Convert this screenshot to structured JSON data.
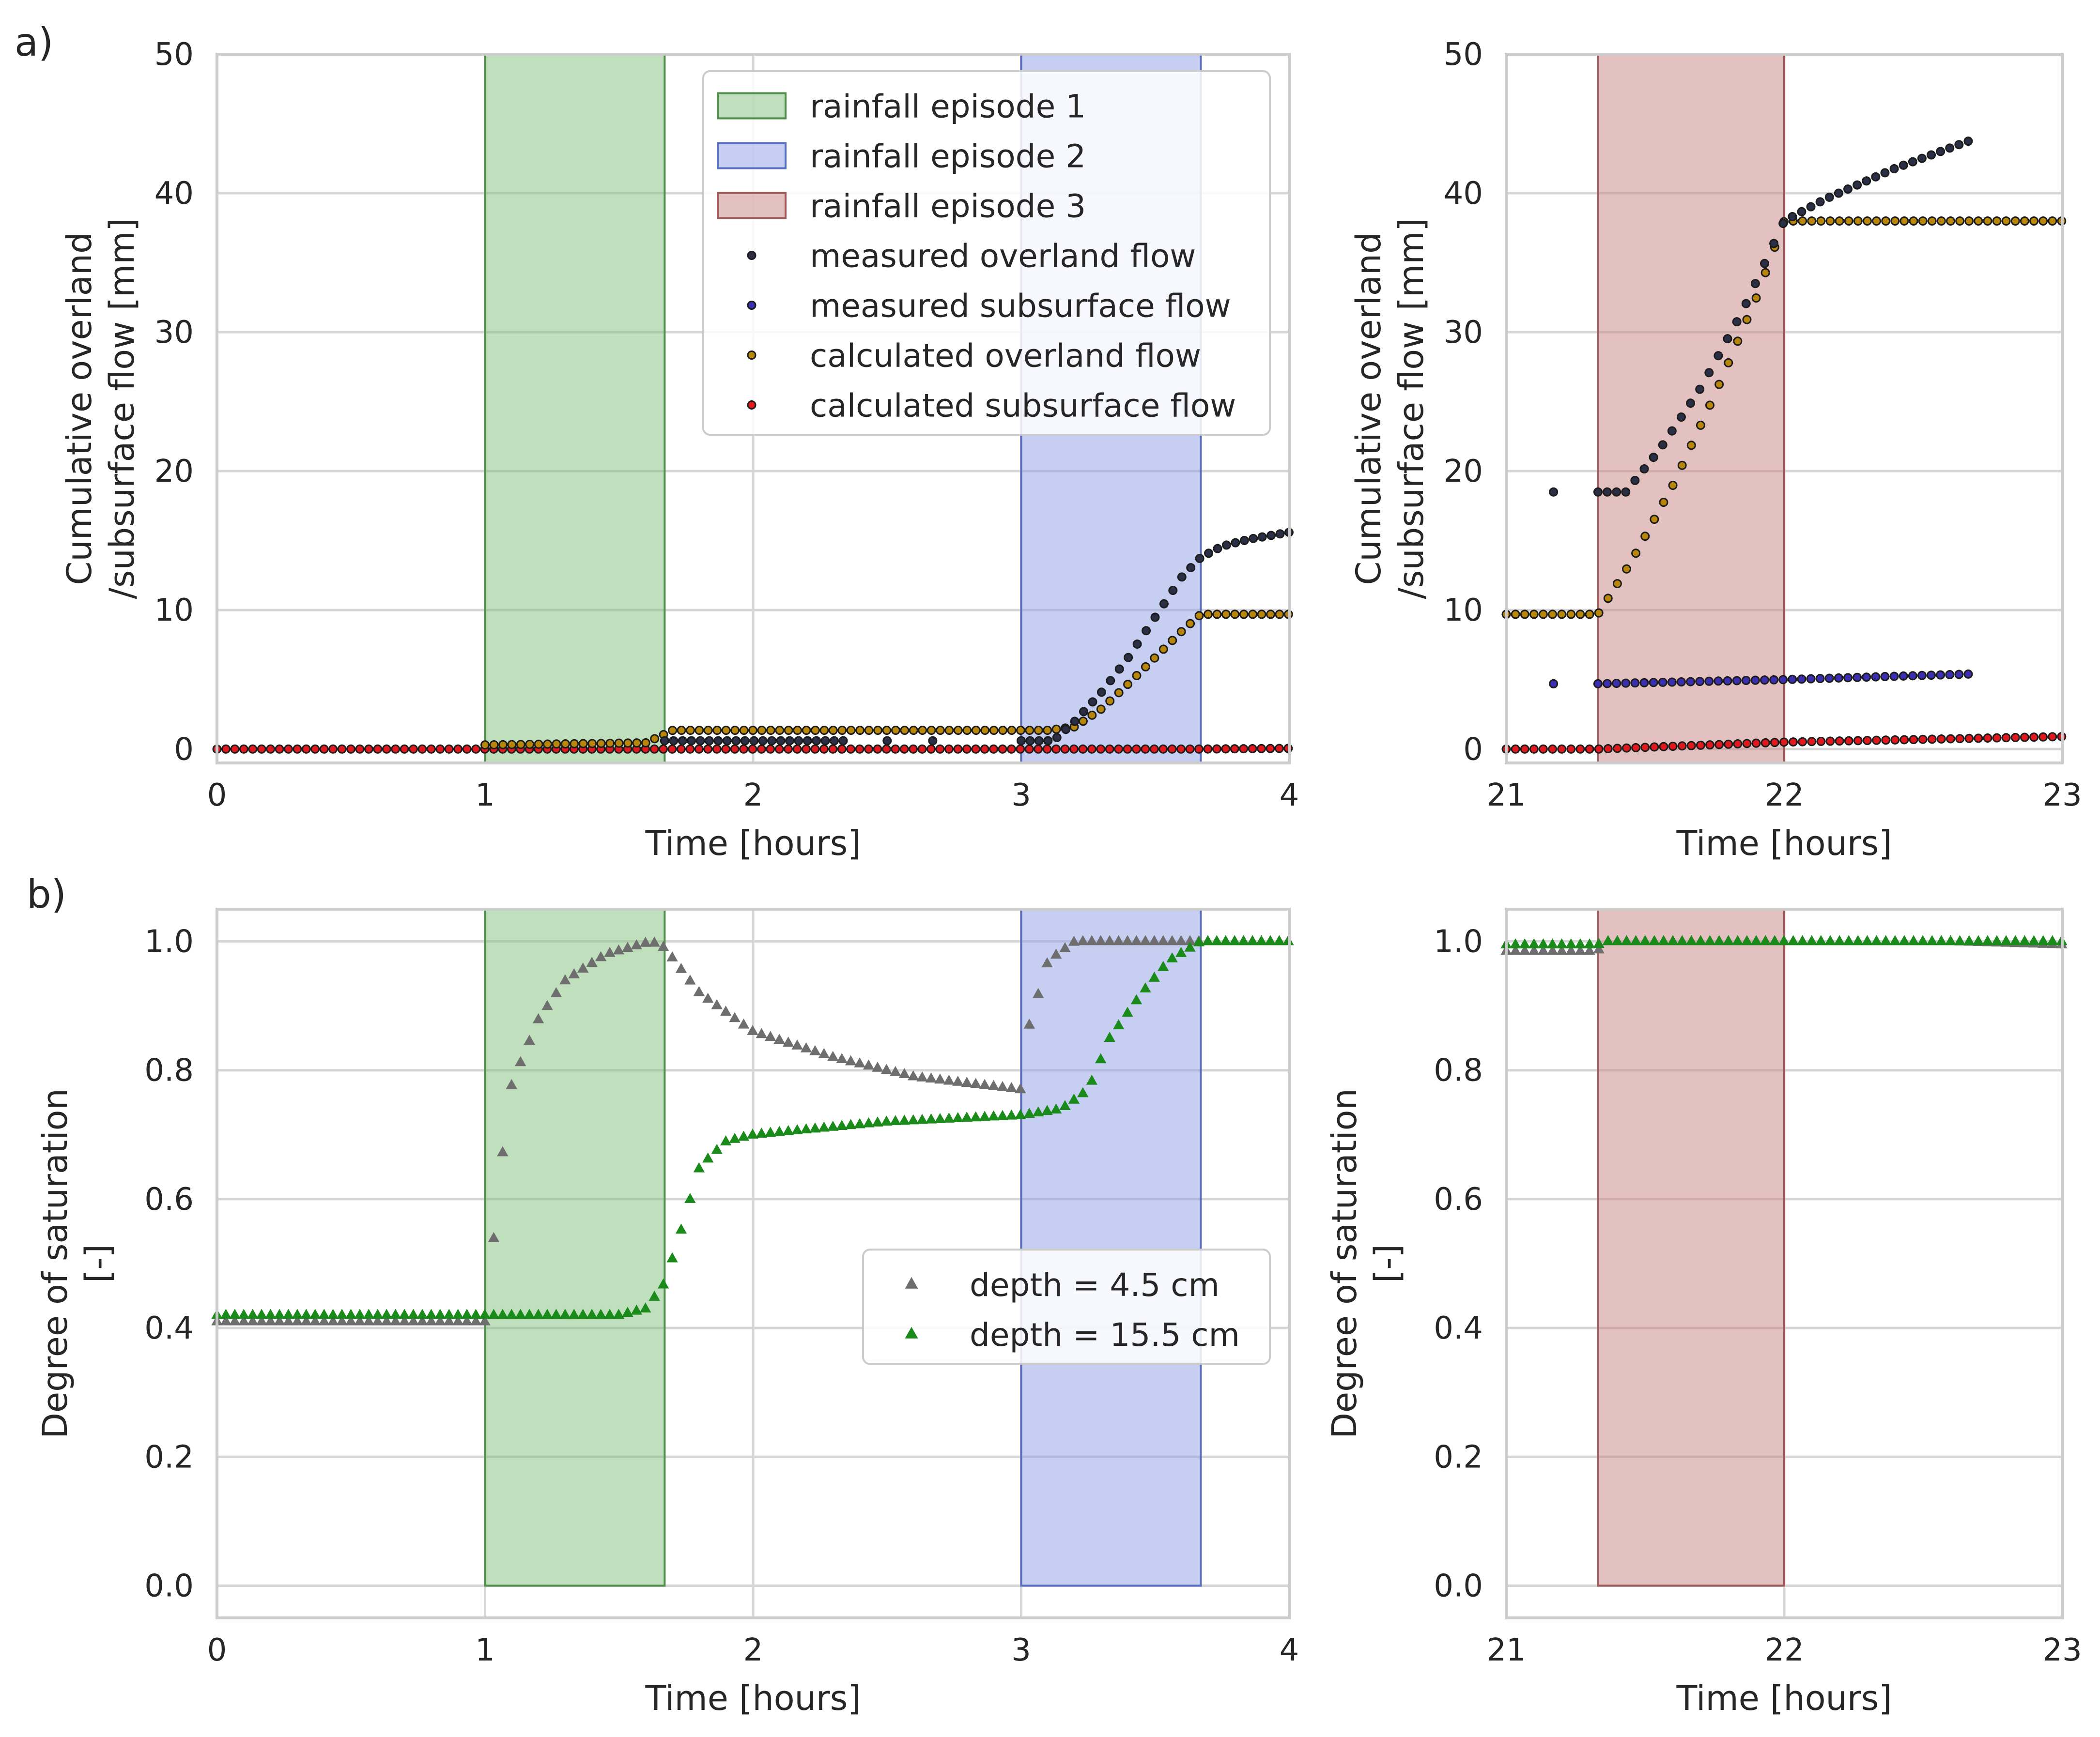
{
  "colors": {
    "ep1": "#7fbf7b",
    "ep1_edge": "#4f8f4b",
    "ep2": "#8da0e6",
    "ep2_edge": "#5a6fbf",
    "ep3": "#c98383",
    "ep3_edge": "#9e5a5a",
    "measured_overland": "#2a2f45",
    "measured_subsurface": "#3b2fb0",
    "calculated_overland": "#b8860b",
    "calculated_subsurface": "#e0191f",
    "depth_4_5": "#6e6e6e",
    "depth_15_5": "#1a8a1a",
    "grid": "#d6d6d6",
    "spine": "#cccccc"
  },
  "labels": {
    "panel_a": "a)",
    "panel_b": "b)"
  },
  "chart_data": [
    {
      "id": "a-left",
      "type": "scatter",
      "xlabel": "Time [hours]",
      "ylabel_lines": [
        "Cumulative overland",
        "/subsurface flow [mm]"
      ],
      "xlim": [
        0,
        4
      ],
      "ylim": [
        -1,
        50
      ],
      "xticks": [
        "0",
        "1",
        "2",
        "3",
        "4"
      ],
      "yticks": [
        "0",
        "10",
        "20",
        "30",
        "40",
        "50"
      ],
      "spans": [
        {
          "name": "rainfall episode 1",
          "x": [
            1.0,
            1.67
          ],
          "color": "ep1"
        },
        {
          "name": "rainfall episode 2",
          "x": [
            3.0,
            3.67
          ],
          "color": "ep2"
        }
      ],
      "legend": {
        "location": "upper right",
        "entries": [
          {
            "label": "rainfall episode 1",
            "kind": "patch",
            "color": "ep1"
          },
          {
            "label": "rainfall episode 2",
            "kind": "patch",
            "color": "ep2"
          },
          {
            "label": "rainfall episode 3",
            "kind": "patch",
            "color": "ep3"
          },
          {
            "label": "measured overland flow",
            "kind": "dot",
            "color": "measured_overland"
          },
          {
            "label": "measured subsurface flow",
            "kind": "dot",
            "color": "measured_subsurface"
          },
          {
            "label": "calculated overland flow",
            "kind": "dot",
            "color": "calculated_overland"
          },
          {
            "label": "calculated subsurface flow",
            "kind": "dot",
            "color": "calculated_subsurface"
          }
        ]
      },
      "series": [
        {
          "name": "calculated subsurface flow",
          "color": "calculated_subsurface",
          "marker": "dot",
          "keypoints": [
            [
              0,
              0.0
            ],
            [
              3.67,
              0.0
            ],
            [
              4.0,
              0.05
            ]
          ],
          "x_start": 0,
          "x_end": 4,
          "step": 0.0333
        },
        {
          "name": "calculated overland flow",
          "color": "calculated_overland",
          "marker": "dot",
          "keypoints": [
            [
              1.0,
              0.3
            ],
            [
              1.6,
              0.45
            ],
            [
              1.65,
              0.9
            ],
            [
              1.7,
              1.35
            ],
            [
              3.1,
              1.35
            ],
            [
              3.2,
              1.6
            ],
            [
              3.3,
              2.9
            ],
            [
              3.4,
              4.7
            ],
            [
              3.5,
              6.6
            ],
            [
              3.6,
              8.5
            ],
            [
              3.67,
              9.7
            ],
            [
              4.0,
              9.7
            ]
          ],
          "x_start": 1.0,
          "x_end": 4.0,
          "step": 0.0333
        },
        {
          "name": "measured overland flow",
          "color": "measured_overland",
          "marker": "dot",
          "keypoints": [
            [
              1.67,
              0.6
            ],
            [
              2.33,
              0.6
            ]
          ],
          "x_start": 1.67,
          "x_end": 2.33,
          "step": 0.0333
        },
        {
          "name": "measured overland flow (b)",
          "color": "measured_overland",
          "marker": "dot",
          "points": [
            [
              2.5,
              0.6
            ],
            [
              2.67,
              0.6
            ]
          ]
        },
        {
          "name": "measured overland flow (c)",
          "color": "measured_overland",
          "marker": "dot",
          "keypoints": [
            [
              3.0,
              0.6
            ],
            [
              3.12,
              0.6
            ],
            [
              3.2,
              2.0
            ],
            [
              3.3,
              4.1
            ],
            [
              3.4,
              6.6
            ],
            [
              3.5,
              9.5
            ],
            [
              3.6,
              12.4
            ],
            [
              3.67,
              13.8
            ],
            [
              3.75,
              14.6
            ],
            [
              3.85,
              15.1
            ],
            [
              4.0,
              15.6
            ]
          ],
          "x_start": 3.0,
          "x_end": 4.0,
          "step": 0.0333
        }
      ]
    },
    {
      "id": "a-right",
      "type": "scatter",
      "xlabel": "Time [hours]",
      "ylabel_lines": [
        "Cumulative overland",
        "/subsurface flow [mm]"
      ],
      "xlim": [
        21,
        23
      ],
      "ylim": [
        -1,
        50
      ],
      "xticks": [
        "21",
        "22",
        "23"
      ],
      "yticks": [
        "0",
        "10",
        "20",
        "30",
        "40",
        "50"
      ],
      "spans": [
        {
          "name": "rainfall episode 3",
          "x": [
            21.33,
            22.0
          ],
          "color": "ep3"
        }
      ],
      "series": [
        {
          "name": "calculated subsurface flow",
          "color": "calculated_subsurface",
          "marker": "dot",
          "keypoints": [
            [
              21.0,
              0.0
            ],
            [
              21.33,
              0.0
            ],
            [
              22.0,
              0.5
            ],
            [
              23.0,
              0.9
            ]
          ],
          "x_start": 21.0,
          "x_end": 23.0,
          "step": 0.0333
        },
        {
          "name": "calculated overland flow",
          "color": "calculated_overland",
          "marker": "dot",
          "keypoints": [
            [
              21.0,
              9.7
            ],
            [
              21.33,
              9.7
            ],
            [
              21.45,
              13.5
            ],
            [
              21.6,
              19.0
            ],
            [
              21.75,
              25.5
            ],
            [
              21.9,
              32.5
            ],
            [
              22.0,
              38.0
            ],
            [
              23.0,
              38.0
            ]
          ],
          "x_start": 21.0,
          "x_end": 23.0,
          "step": 0.0333
        },
        {
          "name": "measured subsurface flow",
          "color": "measured_subsurface",
          "marker": "dot",
          "points": [
            [
              21.17,
              4.7
            ]
          ]
        },
        {
          "name": "measured subsurface flow (b)",
          "color": "measured_subsurface",
          "marker": "dot",
          "keypoints": [
            [
              21.33,
              4.7
            ],
            [
              22.0,
              5.0
            ],
            [
              22.67,
              5.4
            ]
          ],
          "x_start": 21.33,
          "x_end": 22.67,
          "step": 0.0333
        },
        {
          "name": "measured overland flow",
          "color": "measured_overland",
          "marker": "dot",
          "points": [
            [
              21.17,
              18.5
            ]
          ]
        },
        {
          "name": "measured overland flow (b)",
          "color": "measured_overland",
          "marker": "dot",
          "keypoints": [
            [
              21.33,
              18.5
            ],
            [
              21.43,
              18.5
            ],
            [
              21.55,
              21.5
            ],
            [
              21.7,
              26.0
            ],
            [
              21.85,
              31.5
            ],
            [
              22.0,
              38.0
            ],
            [
              22.15,
              39.6
            ],
            [
              22.4,
              41.8
            ],
            [
              22.67,
              43.8
            ]
          ],
          "x_start": 21.33,
          "x_end": 22.67,
          "step": 0.0333
        }
      ]
    },
    {
      "id": "b-left",
      "type": "scatter",
      "xlabel": "Time [hours]",
      "ylabel_lines": [
        "Degree of saturation",
        "[-]"
      ],
      "xlim": [
        0,
        4
      ],
      "ylim": [
        -0.05,
        1.05
      ],
      "xticks": [
        "0",
        "1",
        "2",
        "3",
        "4"
      ],
      "yticks": [
        "0.0",
        "0.2",
        "0.4",
        "0.6",
        "0.8",
        "1.0"
      ],
      "spans": [
        {
          "name": "rainfall episode 1",
          "x": [
            1.0,
            1.67
          ],
          "color": "ep1"
        },
        {
          "name": "rainfall episode 2",
          "x": [
            3.0,
            3.67
          ],
          "color": "ep2"
        }
      ],
      "legend": {
        "location": "center right",
        "entries": [
          {
            "label": "depth = 4.5 cm",
            "kind": "triangle",
            "color": "depth_4_5"
          },
          {
            "label": "depth = 15.5 cm",
            "kind": "triangle",
            "color": "depth_15_5"
          }
        ]
      },
      "series": [
        {
          "name": "depth = 4.5 cm",
          "color": "depth_4_5",
          "marker": "triangle",
          "keypoints": [
            [
              0,
              0.41
            ],
            [
              1.0,
              0.41
            ],
            [
              1.03,
              0.53
            ],
            [
              1.07,
              0.69
            ],
            [
              1.1,
              0.78
            ],
            [
              1.2,
              0.88
            ],
            [
              1.3,
              0.94
            ],
            [
              1.45,
              0.98
            ],
            [
              1.62,
              1.0
            ],
            [
              1.67,
              0.99
            ],
            [
              1.8,
              0.92
            ],
            [
              2.0,
              0.86
            ],
            [
              2.3,
              0.82
            ],
            [
              2.6,
              0.79
            ],
            [
              3.0,
              0.77
            ],
            [
              3.03,
              0.87
            ],
            [
              3.1,
              0.97
            ],
            [
              3.2,
              1.0
            ],
            [
              4.0,
              1.0
            ]
          ],
          "x_start": 0,
          "x_end": 4,
          "step": 0.0333
        },
        {
          "name": "depth = 15.5 cm",
          "color": "depth_15_5",
          "marker": "triangle",
          "keypoints": [
            [
              0,
              0.42
            ],
            [
              1.5,
              0.42
            ],
            [
              1.6,
              0.43
            ],
            [
              1.67,
              0.47
            ],
            [
              1.73,
              0.55
            ],
            [
              1.8,
              0.65
            ],
            [
              1.9,
              0.69
            ],
            [
              2.0,
              0.7
            ],
            [
              2.5,
              0.72
            ],
            [
              3.0,
              0.73
            ],
            [
              3.15,
              0.74
            ],
            [
              3.25,
              0.77
            ],
            [
              3.33,
              0.85
            ],
            [
              3.45,
              0.92
            ],
            [
              3.55,
              0.97
            ],
            [
              3.67,
              1.0
            ],
            [
              4.0,
              1.0
            ]
          ],
          "x_start": 0,
          "x_end": 4,
          "step": 0.0333
        }
      ]
    },
    {
      "id": "b-right",
      "type": "scatter",
      "xlabel": "Time [hours]",
      "ylabel_lines": [
        "Degree of saturation",
        "[-]"
      ],
      "xlim": [
        21,
        23
      ],
      "ylim": [
        -0.05,
        1.05
      ],
      "xticks": [
        "21",
        "22",
        "23"
      ],
      "yticks": [
        "0.0",
        "0.2",
        "0.4",
        "0.6",
        "0.8",
        "1.0"
      ],
      "spans": [
        {
          "name": "rainfall episode 3",
          "x": [
            21.33,
            22.0
          ],
          "color": "ep3"
        }
      ],
      "series": [
        {
          "name": "depth = 4.5 cm",
          "color": "depth_4_5",
          "marker": "triangle",
          "keypoints": [
            [
              21.0,
              0.985
            ],
            [
              21.33,
              0.985
            ],
            [
              21.35,
              1.0
            ],
            [
              22.6,
              1.0
            ],
            [
              23.0,
              0.995
            ]
          ],
          "x_start": 21.0,
          "x_end": 23.0,
          "step": 0.0333
        },
        {
          "name": "depth = 15.5 cm",
          "color": "depth_15_5",
          "marker": "triangle",
          "keypoints": [
            [
              21.0,
              0.995
            ],
            [
              21.33,
              0.995
            ],
            [
              21.35,
              1.0
            ],
            [
              23.0,
              1.0
            ]
          ],
          "x_start": 21.0,
          "x_end": 23.0,
          "step": 0.0333
        }
      ]
    }
  ]
}
